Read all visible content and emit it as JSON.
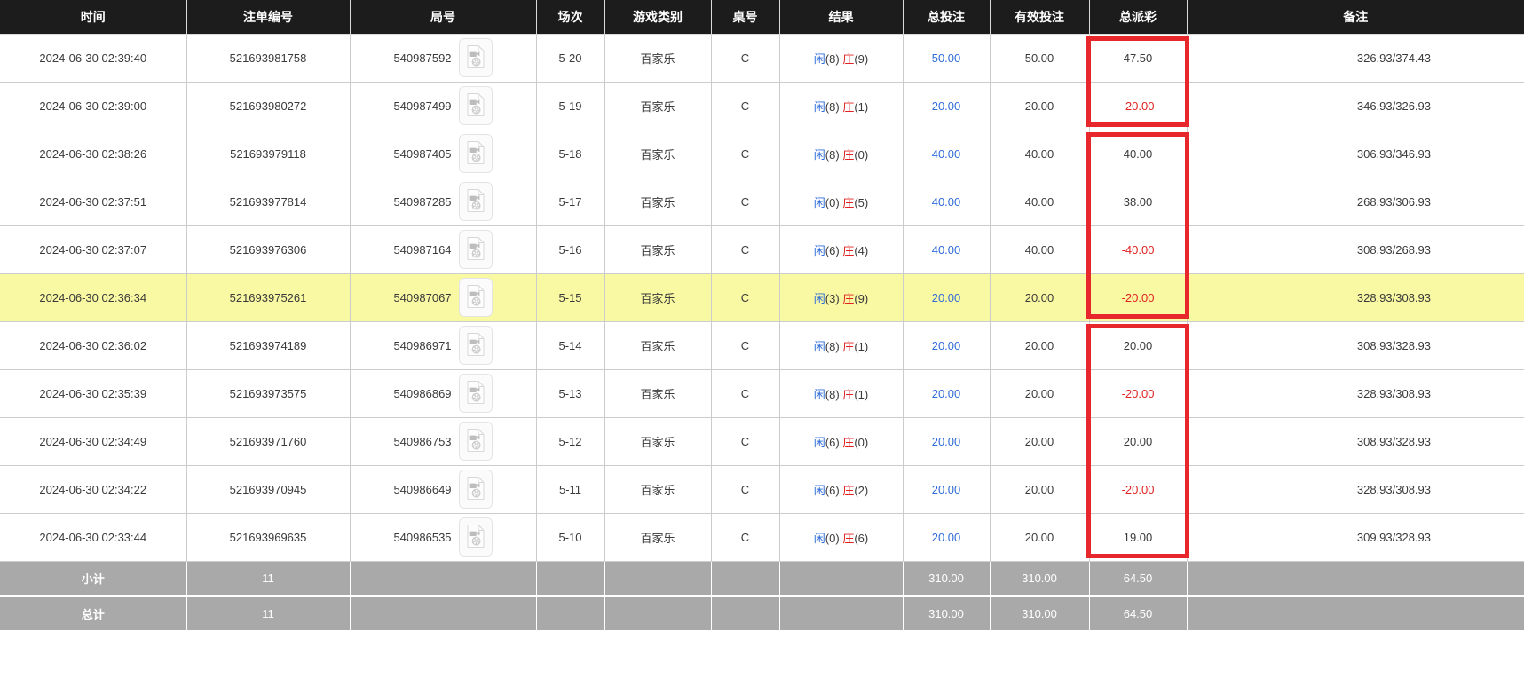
{
  "colors": {
    "header_bg": "#1c1c1c",
    "header_text": "#ffffff",
    "row_bg": "#ffffff",
    "highlight_row_bg": "#f9f9a3",
    "footer_bg": "#a9a9a9",
    "footer_text": "#ffffff",
    "grid_line": "#cccccc",
    "blue": "#2f6cd8",
    "red": "#e02222",
    "annotation_red": "#e8272c",
    "text": "#3a3a3a"
  },
  "icons": {
    "round_video_icon": "video-replay-file-icon"
  },
  "table": {
    "columns": [
      {
        "key": "time",
        "label": "时间"
      },
      {
        "key": "bet_id",
        "label": "注单编号"
      },
      {
        "key": "round_id",
        "label": "局号"
      },
      {
        "key": "session",
        "label": "场次"
      },
      {
        "key": "game_type",
        "label": "游戏类别"
      },
      {
        "key": "table_no",
        "label": "桌号"
      },
      {
        "key": "result",
        "label": "结果"
      },
      {
        "key": "total_bet",
        "label": "总投注"
      },
      {
        "key": "valid_bet",
        "label": "有效投注"
      },
      {
        "key": "total_payout",
        "label": "总派彩"
      },
      {
        "key": "remark",
        "label": "备注"
      }
    ],
    "result_labels": {
      "player": "闲",
      "banker": "庄"
    },
    "rows": [
      {
        "time": "2024-06-30 02:39:40",
        "bet_id": "521693981758",
        "round_id": "540987592",
        "session": "5-20",
        "game_type": "百家乐",
        "table_no": "C",
        "player_pts": "8",
        "banker_pts": "9",
        "total_bet": "50.00",
        "valid_bet": "50.00",
        "total_payout": "47.50",
        "remark": "326.93/374.43",
        "highlighted": false
      },
      {
        "time": "2024-06-30 02:39:00",
        "bet_id": "521693980272",
        "round_id": "540987499",
        "session": "5-19",
        "game_type": "百家乐",
        "table_no": "C",
        "player_pts": "8",
        "banker_pts": "1",
        "total_bet": "20.00",
        "valid_bet": "20.00",
        "total_payout": "-20.00",
        "remark": "346.93/326.93",
        "highlighted": false
      },
      {
        "time": "2024-06-30 02:38:26",
        "bet_id": "521693979118",
        "round_id": "540987405",
        "session": "5-18",
        "game_type": "百家乐",
        "table_no": "C",
        "player_pts": "8",
        "banker_pts": "0",
        "total_bet": "40.00",
        "valid_bet": "40.00",
        "total_payout": "40.00",
        "remark": "306.93/346.93",
        "highlighted": false
      },
      {
        "time": "2024-06-30 02:37:51",
        "bet_id": "521693977814",
        "round_id": "540987285",
        "session": "5-17",
        "game_type": "百家乐",
        "table_no": "C",
        "player_pts": "0",
        "banker_pts": "5",
        "total_bet": "40.00",
        "valid_bet": "40.00",
        "total_payout": "38.00",
        "remark": "268.93/306.93",
        "highlighted": false
      },
      {
        "time": "2024-06-30 02:37:07",
        "bet_id": "521693976306",
        "round_id": "540987164",
        "session": "5-16",
        "game_type": "百家乐",
        "table_no": "C",
        "player_pts": "6",
        "banker_pts": "4",
        "total_bet": "40.00",
        "valid_bet": "40.00",
        "total_payout": "-40.00",
        "remark": "308.93/268.93",
        "highlighted": false
      },
      {
        "time": "2024-06-30 02:36:34",
        "bet_id": "521693975261",
        "round_id": "540987067",
        "session": "5-15",
        "game_type": "百家乐",
        "table_no": "C",
        "player_pts": "3",
        "banker_pts": "9",
        "total_bet": "20.00",
        "valid_bet": "20.00",
        "total_payout": "-20.00",
        "remark": "328.93/308.93",
        "highlighted": true
      },
      {
        "time": "2024-06-30 02:36:02",
        "bet_id": "521693974189",
        "round_id": "540986971",
        "session": "5-14",
        "game_type": "百家乐",
        "table_no": "C",
        "player_pts": "8",
        "banker_pts": "1",
        "total_bet": "20.00",
        "valid_bet": "20.00",
        "total_payout": "20.00",
        "remark": "308.93/328.93",
        "highlighted": false
      },
      {
        "time": "2024-06-30 02:35:39",
        "bet_id": "521693973575",
        "round_id": "540986869",
        "session": "5-13",
        "game_type": "百家乐",
        "table_no": "C",
        "player_pts": "8",
        "banker_pts": "1",
        "total_bet": "20.00",
        "valid_bet": "20.00",
        "total_payout": "-20.00",
        "remark": "328.93/308.93",
        "highlighted": false
      },
      {
        "time": "2024-06-30 02:34:49",
        "bet_id": "521693971760",
        "round_id": "540986753",
        "session": "5-12",
        "game_type": "百家乐",
        "table_no": "C",
        "player_pts": "6",
        "banker_pts": "0",
        "total_bet": "20.00",
        "valid_bet": "20.00",
        "total_payout": "20.00",
        "remark": "308.93/328.93",
        "highlighted": false
      },
      {
        "time": "2024-06-30 02:34:22",
        "bet_id": "521693970945",
        "round_id": "540986649",
        "session": "5-11",
        "game_type": "百家乐",
        "table_no": "C",
        "player_pts": "6",
        "banker_pts": "2",
        "total_bet": "20.00",
        "valid_bet": "20.00",
        "total_payout": "-20.00",
        "remark": "328.93/308.93",
        "highlighted": false
      },
      {
        "time": "2024-06-30 02:33:44",
        "bet_id": "521693969635",
        "round_id": "540986535",
        "session": "5-10",
        "game_type": "百家乐",
        "table_no": "C",
        "player_pts": "0",
        "banker_pts": "6",
        "total_bet": "20.00",
        "valid_bet": "20.00",
        "total_payout": "19.00",
        "remark": "309.93/328.93",
        "highlighted": false
      }
    ],
    "footer_rows": [
      {
        "name": "subtotal",
        "label": "小计",
        "count": "11",
        "total_bet": "310.00",
        "valid_bet": "310.00",
        "total_payout": "64.50"
      },
      {
        "name": "total",
        "label": "总计",
        "count": "11",
        "total_bet": "310.00",
        "valid_bet": "310.00",
        "total_payout": "64.50"
      }
    ]
  },
  "annotations": {
    "payout_box_groups": [
      [
        0,
        1
      ],
      [
        2,
        5
      ],
      [
        6,
        10
      ]
    ]
  }
}
